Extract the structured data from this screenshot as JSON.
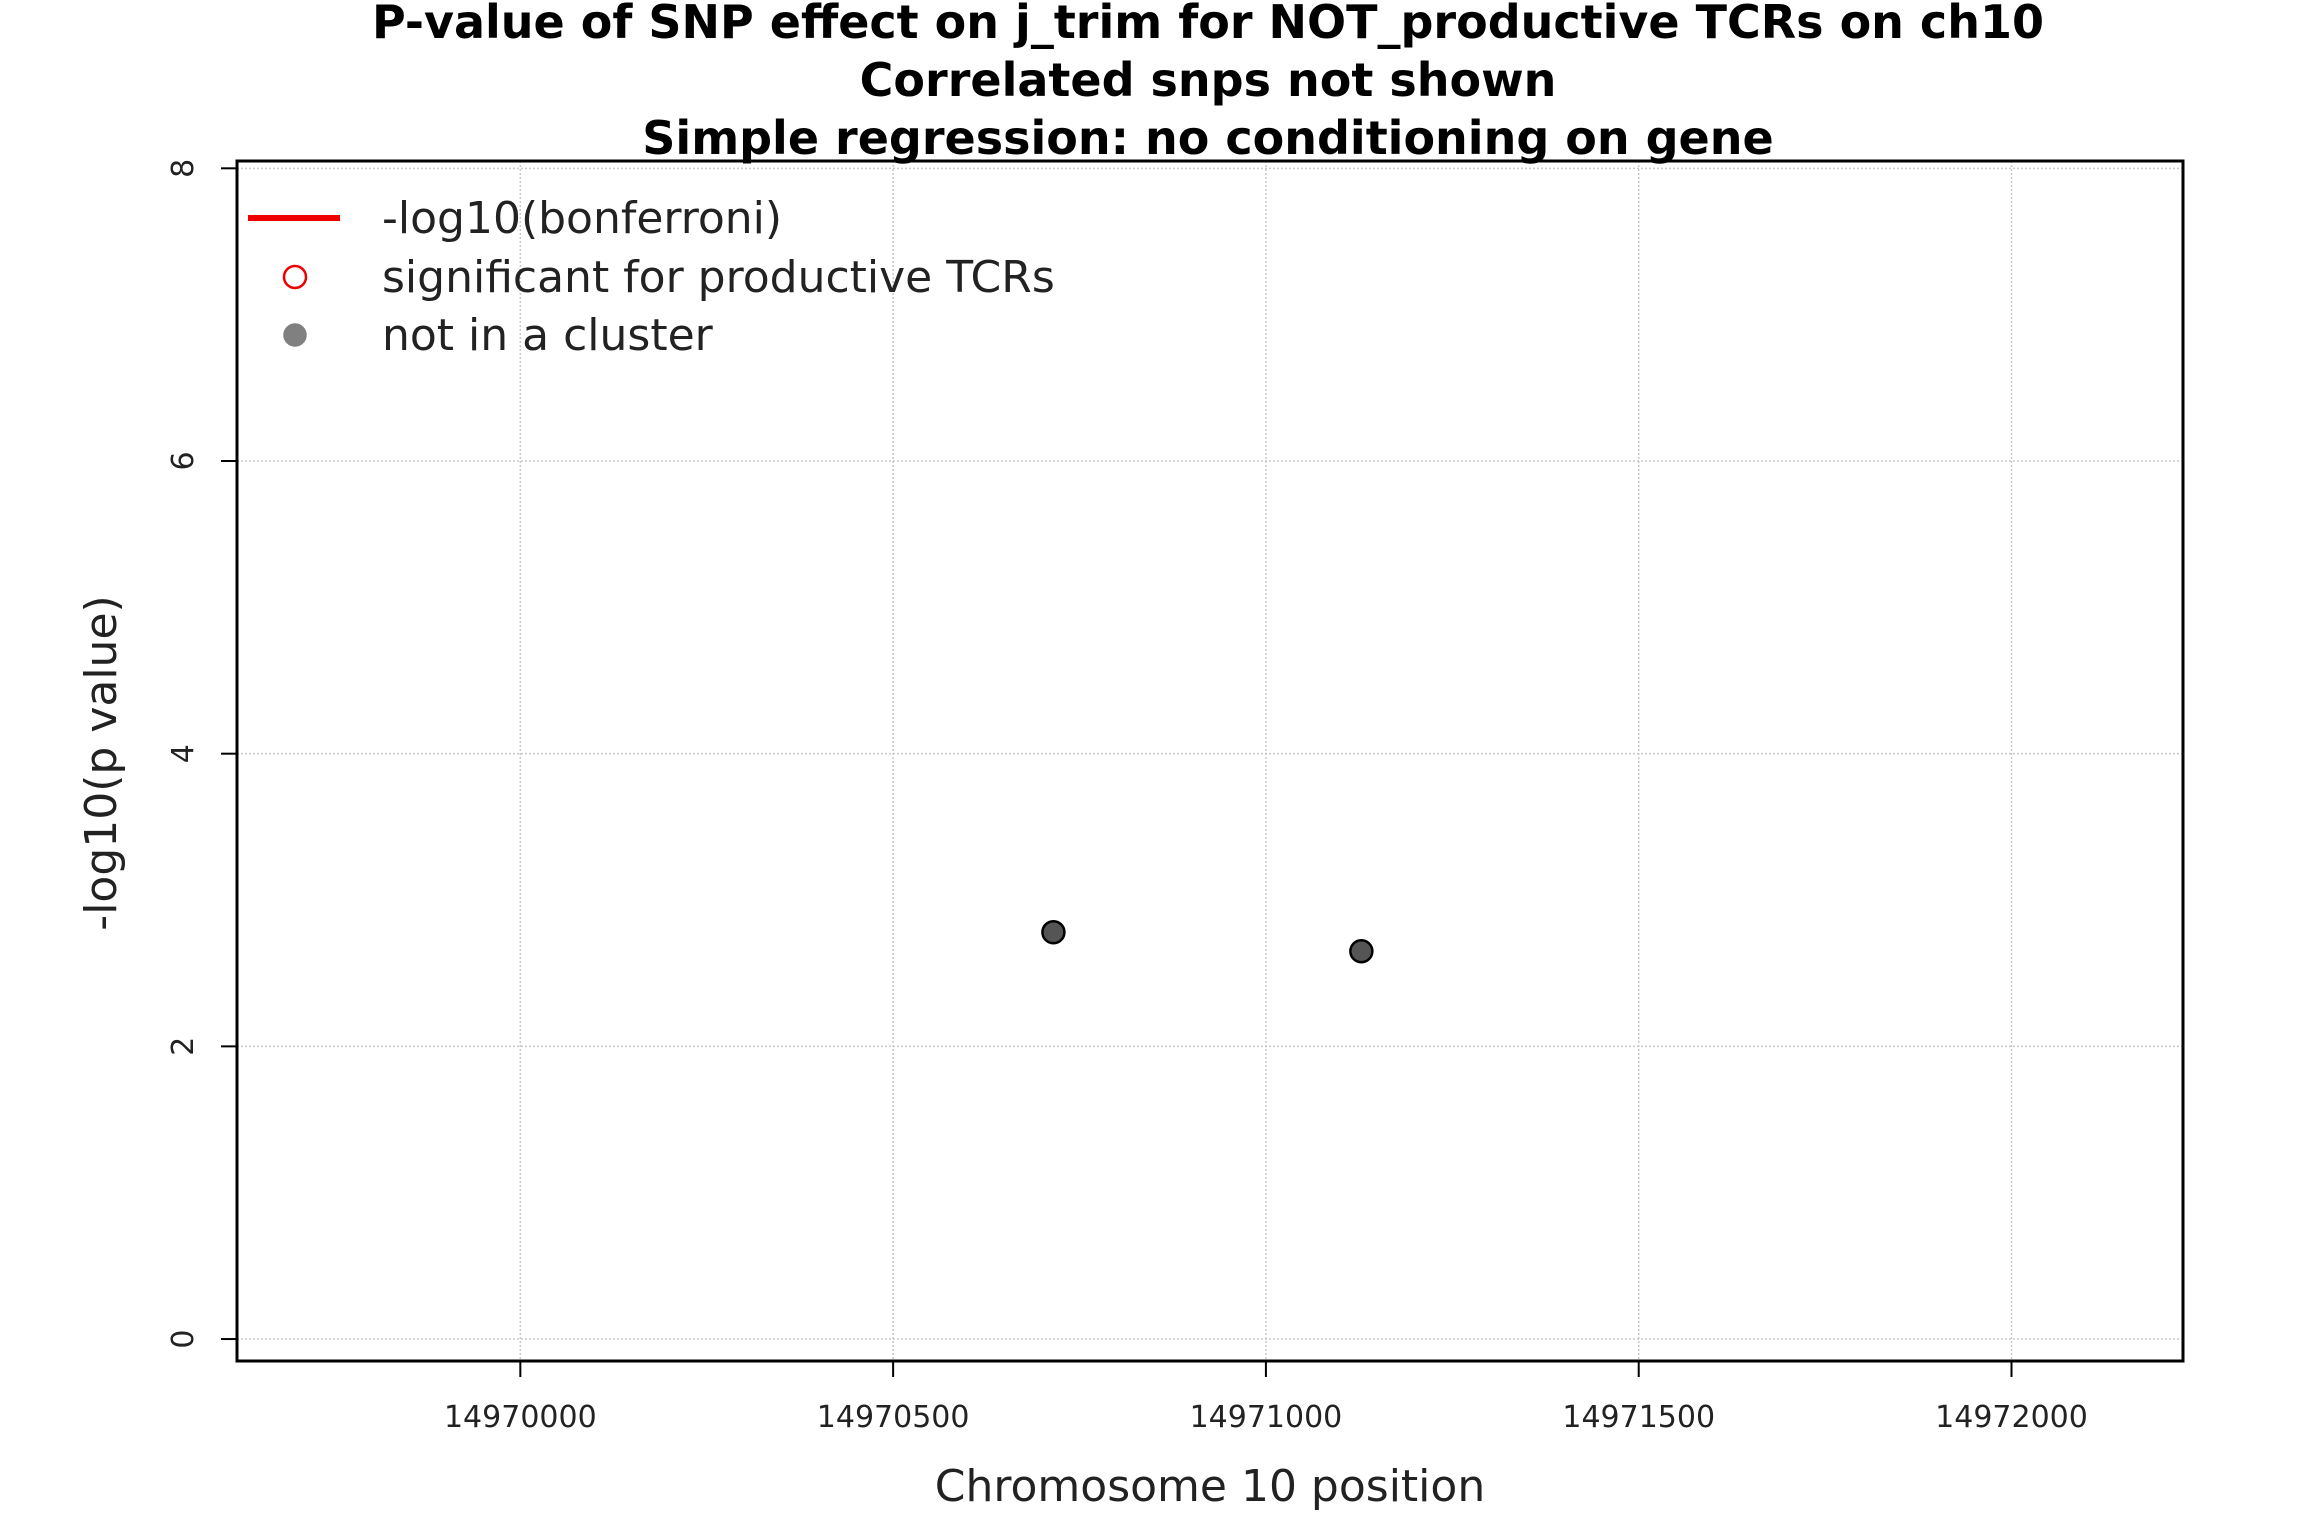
{
  "chart_data": {
    "type": "scatter",
    "title": [
      "P-value of SNP effect on j_trim for NOT_productive TCRs on ch10",
      "Correlated snps not shown",
      "Simple regression: no conditioning on gene"
    ],
    "xlabel": "Chromosome 10 position",
    "ylabel": "-log10(p value)",
    "xlim": [
      14969620,
      14972230
    ],
    "ylim": [
      -0.15,
      8.05
    ],
    "x_ticks": [
      14970000,
      14970500,
      14971000,
      14971500,
      14972000
    ],
    "x_tick_labels": [
      "14970000",
      "14970500",
      "14971000",
      "14971500",
      "14972000"
    ],
    "y_ticks": [
      0,
      2,
      4,
      6,
      8
    ],
    "y_tick_labels": [
      "0",
      "2",
      "4",
      "6",
      "8"
    ],
    "grid": true,
    "legend_position": "top-left",
    "legend": [
      {
        "label": "-log10(bonferroni)",
        "marker": "line",
        "color": "#ee0000"
      },
      {
        "label": "significant for productive TCRs",
        "marker": "open-circle",
        "color": "#ee0000"
      },
      {
        "label": "not in a cluster",
        "marker": "filled-circle",
        "color": "#808080"
      }
    ],
    "series": [
      {
        "name": "not in a cluster",
        "color": "#555555",
        "points": [
          {
            "x": 14970715,
            "y": 2.78
          },
          {
            "x": 14971128,
            "y": 2.65
          }
        ]
      }
    ]
  }
}
